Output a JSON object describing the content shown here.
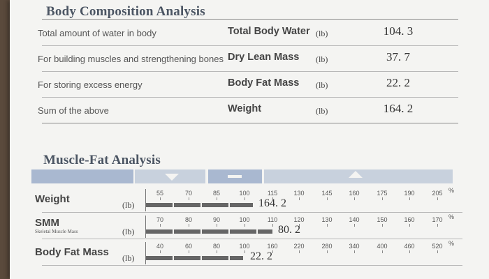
{
  "body_composition": {
    "title": "Body Composition Analysis",
    "rows": [
      {
        "description": "Total amount of water in body",
        "name": "Total Body Water",
        "unit": "(lb)",
        "value": "104. 3"
      },
      {
        "description": "For building muscles and strengthening bones",
        "name": "Dry Lean Mass",
        "unit": "(lb)",
        "value": "37. 7"
      },
      {
        "description": "For storing excess energy",
        "name": "Body Fat Mass",
        "unit": "(lb)",
        "value": "22. 2"
      },
      {
        "description": "Sum of the above",
        "name": "Weight",
        "unit": "(lb)",
        "value": "164. 2"
      }
    ]
  },
  "muscle_fat": {
    "title": "Muscle-Fat Analysis",
    "percent_symbol": "%",
    "rows": [
      {
        "name": "Weight",
        "subtitle": "",
        "unit": "(lb)",
        "ticks": [
          "55",
          "70",
          "85",
          "100",
          "115",
          "130",
          "145",
          "160",
          "175",
          "190",
          "205"
        ],
        "value": "164. 2",
        "bar_percent": 164.2
      },
      {
        "name": "SMM",
        "subtitle": "Skeletal Muscle Mass",
        "unit": "(lb)",
        "ticks": [
          "70",
          "80",
          "90",
          "100",
          "110",
          "120",
          "130",
          "140",
          "150",
          "160",
          "170"
        ],
        "value": "80. 2",
        "bar_percent": 112
      },
      {
        "name": "Body Fat Mass",
        "subtitle": "",
        "unit": "(lb)",
        "ticks": [
          "40",
          "60",
          "80",
          "100",
          "160",
          "220",
          "280",
          "340",
          "400",
          "460",
          "520"
        ],
        "value": "22. 2",
        "bar_percent": 101
      }
    ]
  }
}
